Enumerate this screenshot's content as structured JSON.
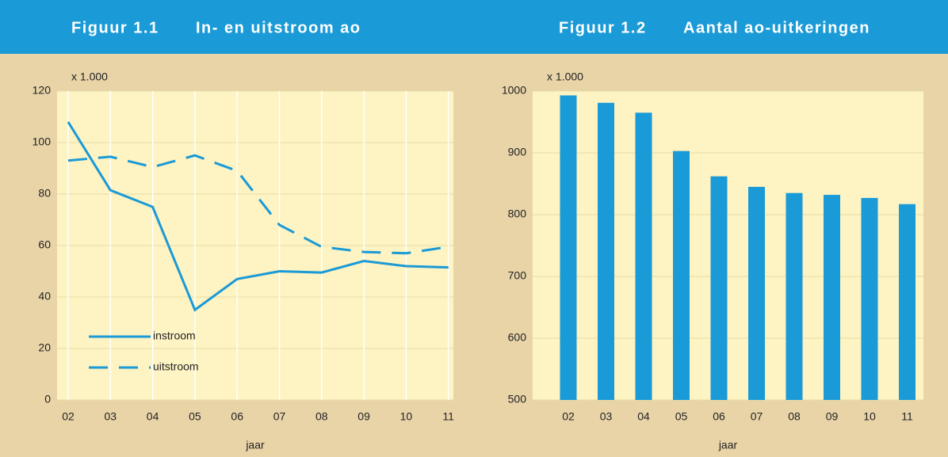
{
  "chart_data": [
    {
      "type": "line",
      "figure_label": "Figuur 1.1",
      "title": "In- en uitstroom ao",
      "unit_label": "x 1.000",
      "xlabel": "jaar",
      "categories": [
        "02",
        "03",
        "04",
        "05",
        "06",
        "07",
        "08",
        "09",
        "10",
        "11"
      ],
      "series": [
        {
          "name": "instroom",
          "color": "#1a9ad6",
          "line_style": "solid",
          "values": [
            108,
            81.5,
            75,
            35,
            47,
            50,
            49.5,
            54,
            52,
            51.5
          ]
        },
        {
          "name": "uitstroom",
          "color": "#1a9ad6",
          "line_style": "dashed",
          "values": [
            93,
            94.5,
            90.5,
            95,
            89,
            68,
            59.5,
            57.5,
            57,
            59.5
          ]
        }
      ],
      "ylim": [
        0,
        120
      ],
      "yticks": [
        0,
        20,
        40,
        60,
        80,
        100,
        120
      ],
      "grid": true,
      "legend": "lower left"
    },
    {
      "type": "bar",
      "figure_label": "Figuur 1.2",
      "title": "Aantal ao-uitkeringen",
      "unit_label": "x 1.000",
      "xlabel": "jaar",
      "categories": [
        "02",
        "03",
        "04",
        "05",
        "06",
        "07",
        "08",
        "09",
        "10",
        "11"
      ],
      "values": [
        993,
        981,
        965,
        903,
        862,
        845,
        835,
        832,
        827,
        817
      ],
      "color": "#1a9ad6",
      "ylim": [
        500,
        1000
      ],
      "yticks": [
        500,
        600,
        700,
        800,
        900,
        1000
      ],
      "grid": true
    }
  ]
}
